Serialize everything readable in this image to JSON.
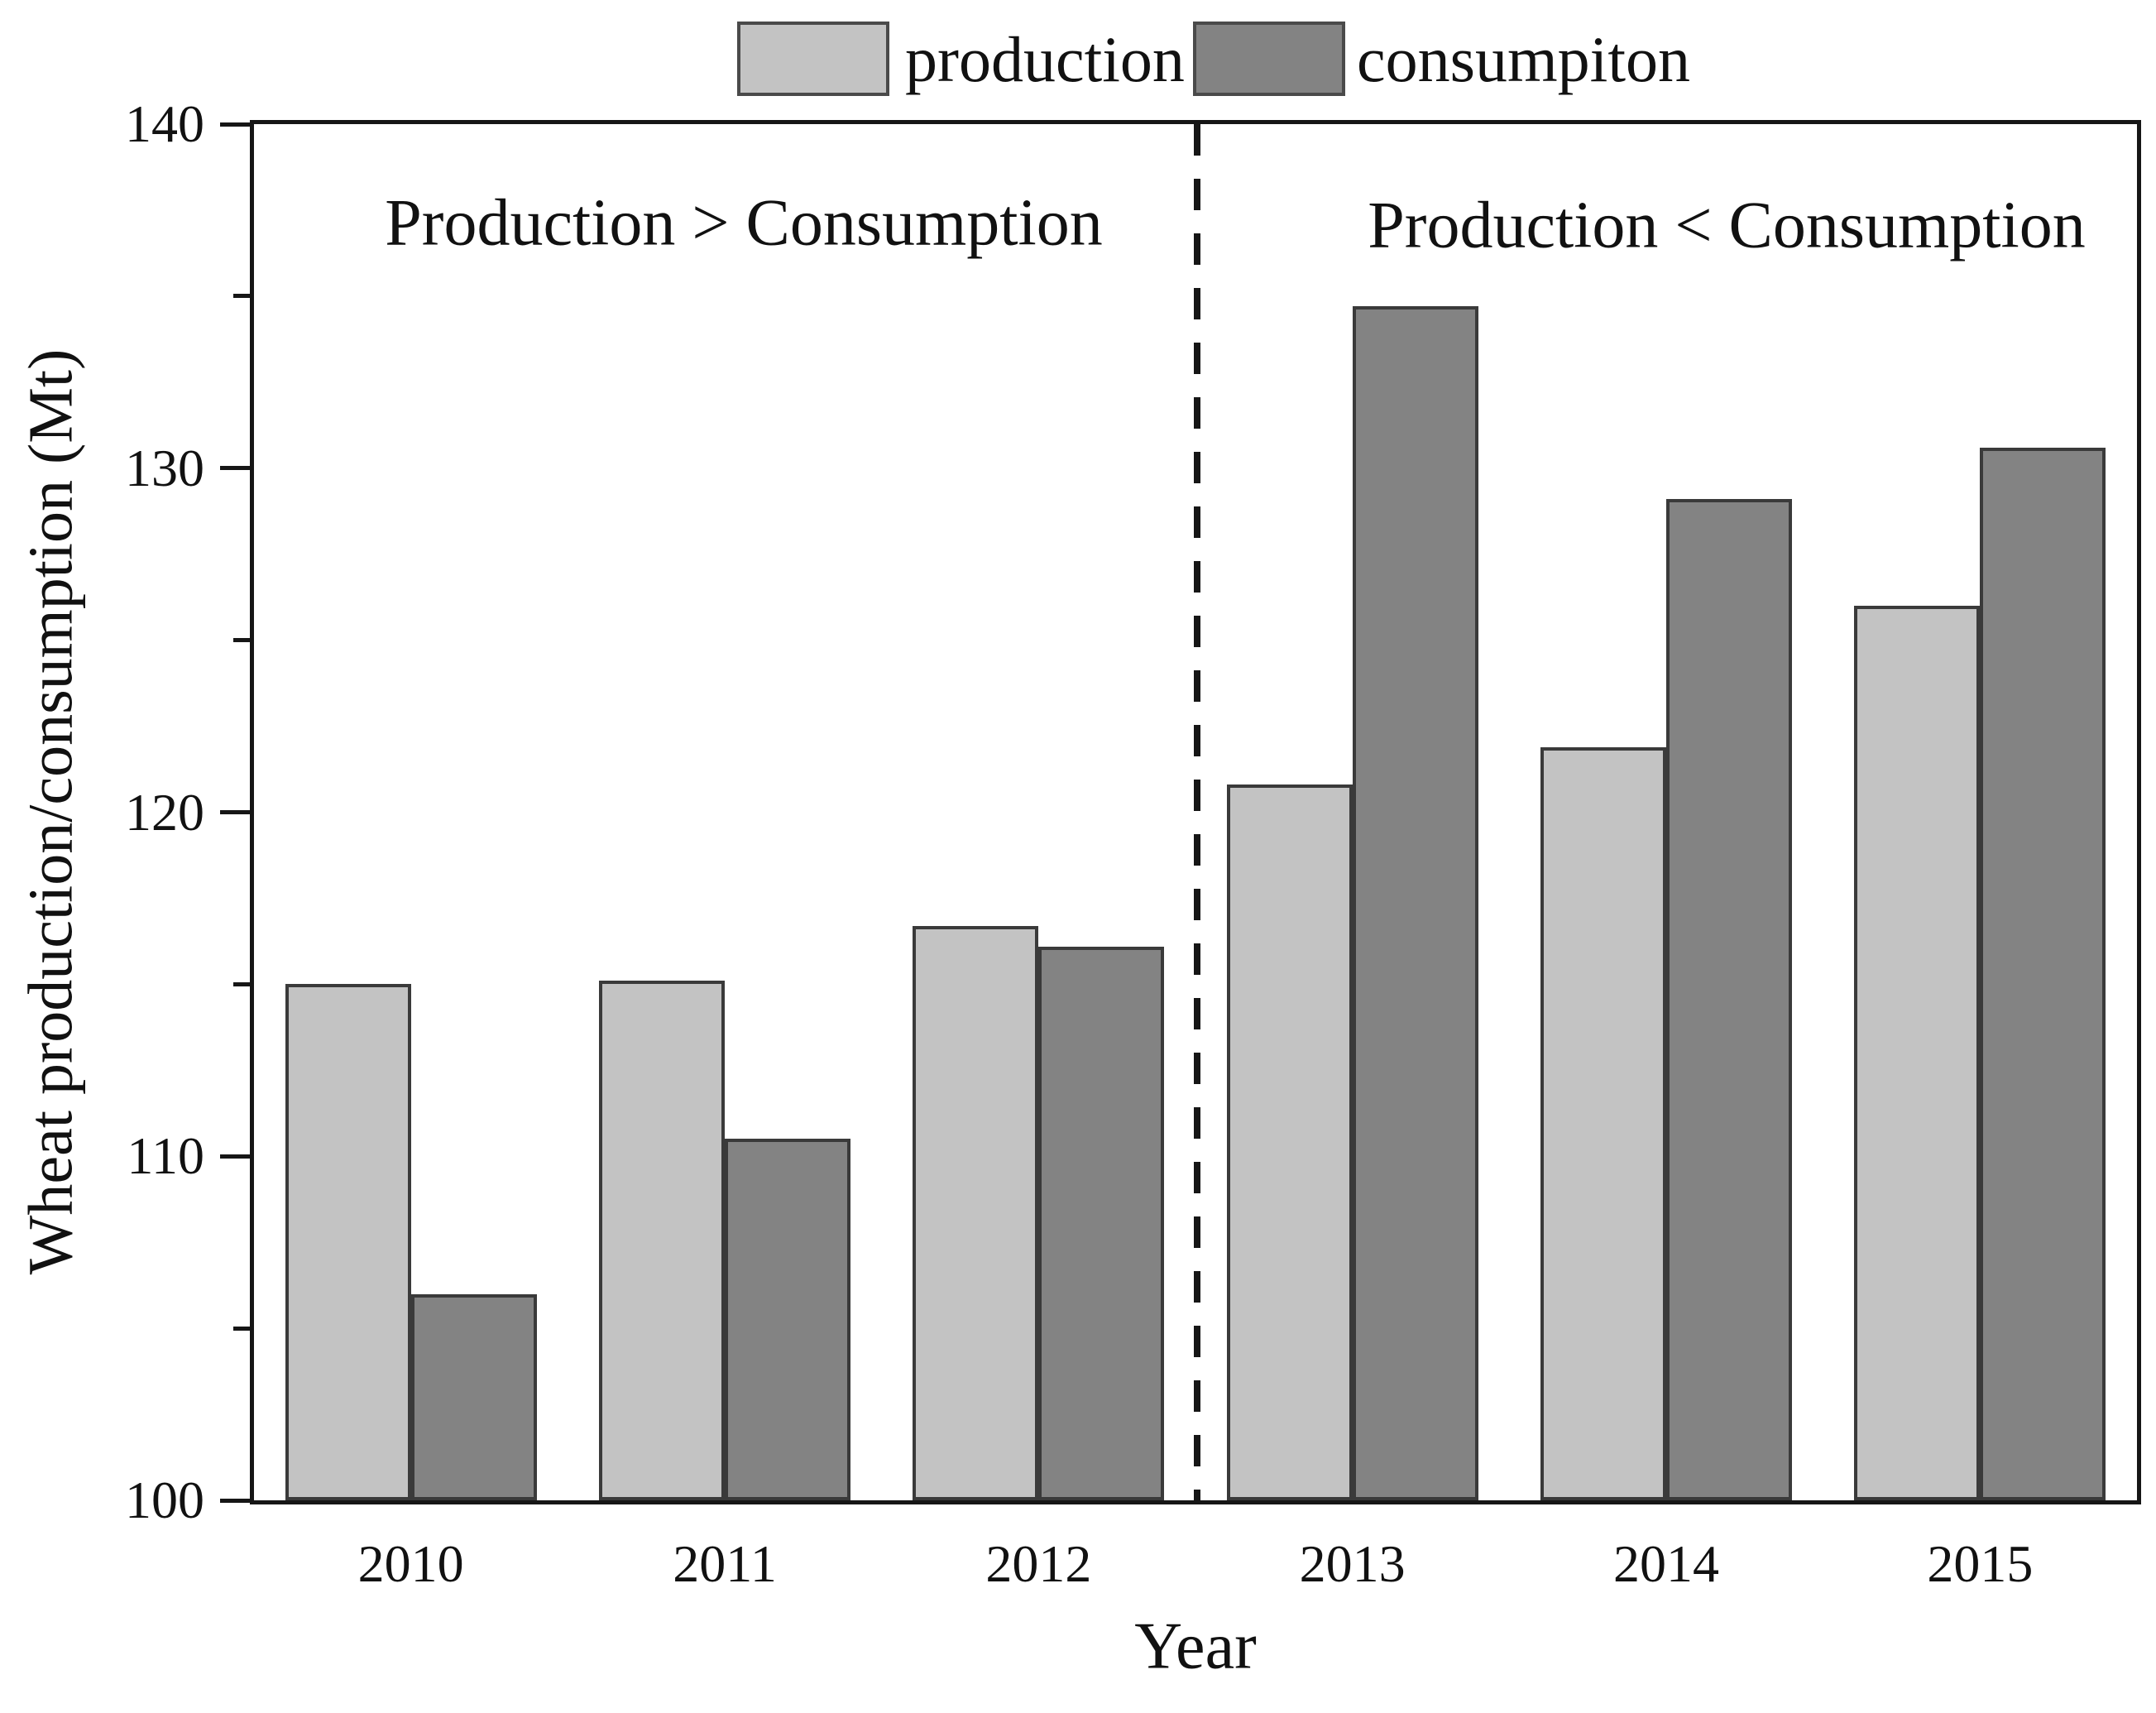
{
  "colors": {
    "production_fill": "#c3c3c3",
    "consumption_fill": "#838383",
    "bar_border": "#3a3a3a",
    "axis": "#161616",
    "background": "#ffffff",
    "text": "#111111"
  },
  "legend": {
    "production_label": "production",
    "consumption_label": "consumpiton"
  },
  "chart_data": {
    "type": "bar",
    "title": "",
    "categories": [
      "2010",
      "2011",
      "2012",
      "2013",
      "2014",
      "2015"
    ],
    "series": [
      {
        "name": "production",
        "color": "#c3c3c3",
        "values": [
          115.0,
          115.1,
          116.7,
          120.8,
          121.9,
          126.0
        ]
      },
      {
        "name": "consumpiton",
        "color": "#838383",
        "values": [
          106.0,
          110.5,
          116.1,
          134.7,
          129.1,
          130.6
        ]
      }
    ],
    "xlabel": "Year",
    "ylabel": "Wheat production/consumption (Mt)",
    "ylim": [
      100,
      140
    ],
    "yticks": [
      100,
      110,
      120,
      130,
      140
    ],
    "minor_ticks": [
      105,
      115,
      125,
      135
    ],
    "grid": false,
    "legend_position": "top-center",
    "annotations": [
      {
        "text": "Production > Consumption",
        "side": "left"
      },
      {
        "text": "Production < Consumption",
        "side": "right"
      }
    ],
    "divider": {
      "style": "dashed",
      "between_categories": [
        "2012",
        "2013"
      ]
    }
  }
}
